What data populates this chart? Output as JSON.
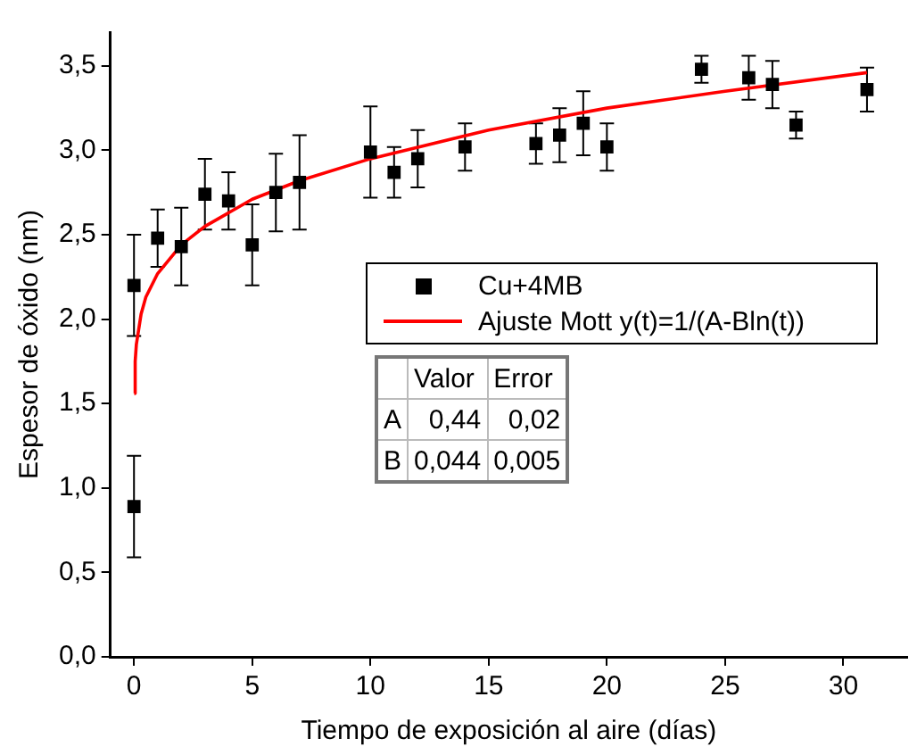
{
  "chart_data": {
    "type": "scatter",
    "xlabel": "Tiempo de exposición al aire (días)",
    "ylabel": "Espesor de óxido (nm)",
    "xlim": [
      -1,
      32.7
    ],
    "ylim": [
      0,
      3.7
    ],
    "xticks": [
      0,
      5,
      10,
      15,
      20,
      25,
      30
    ],
    "yticks": [
      {
        "value": 0,
        "label": "0,0"
      },
      {
        "value": 0.5,
        "label": "0,5"
      },
      {
        "value": 1,
        "label": "1,0"
      },
      {
        "value": 1.5,
        "label": "1,5"
      },
      {
        "value": 2,
        "label": "2,0"
      },
      {
        "value": 2.5,
        "label": "2,5"
      },
      {
        "value": 3,
        "label": "3,0"
      },
      {
        "value": 3.5,
        "label": "3,5"
      }
    ],
    "grid": false,
    "legend": "right",
    "marker": "square",
    "series": [
      {
        "name": "Cu+4MB",
        "color": "#000000",
        "x": [
          0,
          0,
          1,
          2,
          3,
          4,
          5,
          6,
          7,
          10,
          11,
          12,
          14,
          17,
          18,
          19,
          20,
          24,
          26,
          27,
          28,
          31
        ],
        "values": [
          2.2,
          0.89,
          2.48,
          2.43,
          2.74,
          2.7,
          2.44,
          2.75,
          2.81,
          2.99,
          2.87,
          2.95,
          3.02,
          3.04,
          3.09,
          3.16,
          3.02,
          3.48,
          3.43,
          3.39,
          3.15,
          3.36
        ],
        "errors": [
          0.3,
          0.3,
          0.17,
          0.23,
          0.21,
          0.17,
          0.24,
          0.23,
          0.28,
          0.27,
          0.15,
          0.17,
          0.14,
          0.12,
          0.16,
          0.19,
          0.14,
          0.08,
          0.13,
          0.14,
          0.08,
          0.13
        ]
      },
      {
        "name": "Ajuste Mott y(t)=1/(A-Bln(t))",
        "type": "line",
        "color": "#ff0000",
        "marker": "none",
        "line_style": "solid",
        "x": [
          0.01,
          0.05,
          0.1,
          0.3,
          0.5,
          1,
          2,
          3,
          5,
          7,
          10,
          15,
          20,
          25,
          31
        ],
        "values": [
          1.56,
          1.75,
          1.85,
          2.03,
          2.13,
          2.27,
          2.44,
          2.55,
          2.71,
          2.82,
          2.95,
          3.12,
          3.25,
          3.35,
          3.46
        ]
      }
    ],
    "annotations": [
      "Valor",
      "Error",
      "A",
      "0,44",
      "0,02",
      "B",
      "0,044",
      "0,005"
    ]
  }
}
